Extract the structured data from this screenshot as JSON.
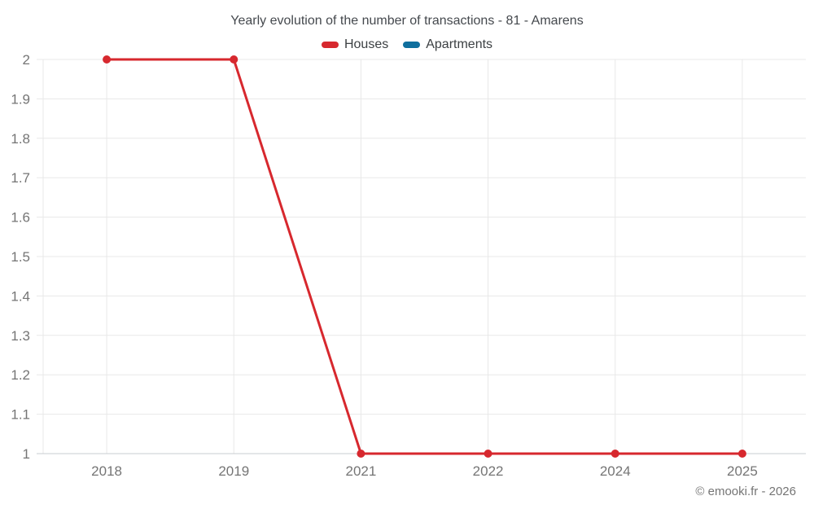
{
  "title": "Yearly evolution of the number of transactions - 81 - Amarens",
  "copyright": "© emooki.fr - 2026",
  "chart_data": {
    "type": "line",
    "title": "Yearly evolution of the number of transactions - 81 - Amarens",
    "categories": [
      "2018",
      "2019",
      "2021",
      "2022",
      "2024",
      "2025"
    ],
    "series": [
      {
        "name": "Houses",
        "color": "#d7282e",
        "values": [
          2,
          2,
          1,
          1,
          1,
          1
        ]
      },
      {
        "name": "Apartments",
        "color": "#0f6f9e",
        "values": []
      }
    ],
    "xlabel": "",
    "ylabel": "",
    "ylim": [
      1,
      2
    ],
    "yticks": [
      2,
      1.9,
      1.8,
      1.7,
      1.6,
      1.5,
      1.4,
      1.3,
      1.2,
      1.1,
      1
    ],
    "ytick_labels": [
      "2",
      "1.9",
      "1.8",
      "1.7",
      "1.6",
      "1.5",
      "1.4",
      "1.3",
      "1.2",
      "1.1",
      "1"
    ],
    "grid": true,
    "legend_position": "top",
    "marker": "circle",
    "marker_radius": 5,
    "line_width": 3,
    "grid_color": "#e8e8e8",
    "axis_line_color": "#c9cdd1",
    "axis_text_color": "#757575"
  }
}
